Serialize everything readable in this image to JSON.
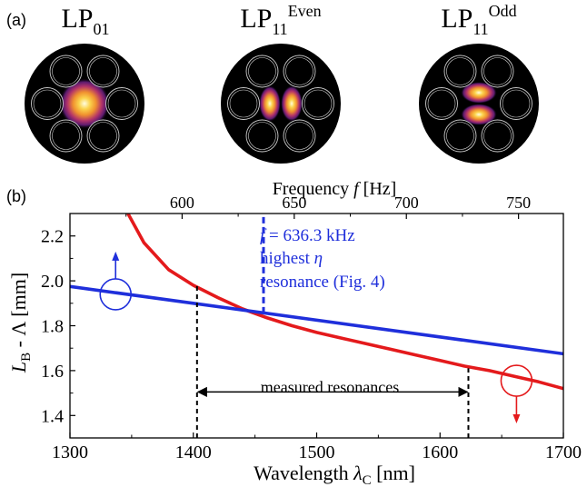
{
  "panel_a": {
    "label": "(a)",
    "modes": [
      {
        "name": "LP",
        "sub": "01",
        "sup": "",
        "pattern": "single-lobe"
      },
      {
        "name": "LP",
        "sub": "11",
        "sup": "Even",
        "pattern": "two-lobes-horizontal"
      },
      {
        "name": "LP",
        "sub": "11",
        "sup": "Odd",
        "pattern": "two-lobes-vertical"
      }
    ],
    "colors": {
      "background": "#000000",
      "hole_outline": "#cccccc"
    }
  },
  "panel_b": {
    "label": "(b)",
    "annotation_lines": [
      "f = 636.3 kHz",
      "highest η",
      "resonance (Fig. 4)"
    ],
    "annotation_parts": {
      "f_symbol": "f",
      "f_rest": " = 636.3 kHz",
      "eta_prefix": "highest ",
      "eta_symbol": "η",
      "line3": "resonance (Fig. 4)"
    },
    "measured_label": "measured resonances"
  },
  "chart_data": {
    "type": "line",
    "title": "",
    "xlabel_parts": {
      "text": "Wavelength ",
      "symbol": "λ",
      "sub": "C",
      "unit": " [nm]"
    },
    "ylabel_parts": {
      "sym1": "L",
      "sub1": "B",
      "rest": " - Λ [mm]"
    },
    "x2label_parts": {
      "text": "Frequency ",
      "symbol": "f",
      "unit": " [Hz]"
    },
    "xlim": [
      1300,
      1700
    ],
    "ylim": [
      1.3,
      2.3
    ],
    "x2lim": [
      550,
      770
    ],
    "x_ticks": [
      1300,
      1400,
      1500,
      1600,
      1700
    ],
    "x_tick_labels": [
      "1300",
      "1400",
      "1500",
      "1600",
      "1700"
    ],
    "y_ticks": [
      1.4,
      1.6,
      1.8,
      2.0,
      2.2
    ],
    "y_tick_labels": [
      "1.4",
      "1.6",
      "1.8",
      "2.0",
      "2.2"
    ],
    "x2_ticks": [
      600,
      650,
      700,
      750
    ],
    "x2_tick_labels": [
      "600",
      "650",
      "700",
      "750"
    ],
    "grid": false,
    "series": [
      {
        "axis": "bottom",
        "color": "#e41a1c",
        "x": [
          1347,
          1360,
          1380,
          1400,
          1420,
          1440,
          1460,
          1480,
          1500,
          1520,
          1540,
          1560,
          1580,
          1600,
          1620,
          1640,
          1660,
          1680,
          1700
        ],
        "y": [
          2.3,
          2.17,
          2.05,
          1.98,
          1.925,
          1.875,
          1.835,
          1.8,
          1.77,
          1.745,
          1.72,
          1.695,
          1.67,
          1.645,
          1.62,
          1.6,
          1.575,
          1.55,
          1.52
        ]
      },
      {
        "axis": "top",
        "color": "#1f2fdb",
        "x": [
          550,
          770
        ],
        "y": [
          1.975,
          1.675
        ]
      }
    ],
    "vlines": [
      {
        "axis": "bottom",
        "x": 1403,
        "y0": 1.3,
        "y1": 1.99,
        "color": "#000000",
        "style": "dashed"
      },
      {
        "axis": "bottom",
        "x": 1623,
        "y0": 1.3,
        "y1": 1.61,
        "color": "#000000",
        "style": "dashed"
      },
      {
        "axis": "top",
        "x": 636.3,
        "y0": 1.855,
        "y1": 2.3,
        "color": "#1f2fdb",
        "style": "dashed"
      }
    ],
    "range_arrow": {
      "x0": 1403,
      "x1": 1623,
      "y": 1.505
    },
    "axis_markers": [
      {
        "series": "blue",
        "x": 1337,
        "y": 1.94,
        "arrow": "up",
        "color": "#1f2fdb"
      },
      {
        "series": "red",
        "x": 1662,
        "y": 1.555,
        "arrow": "down",
        "color": "#e41a1c"
      }
    ]
  }
}
